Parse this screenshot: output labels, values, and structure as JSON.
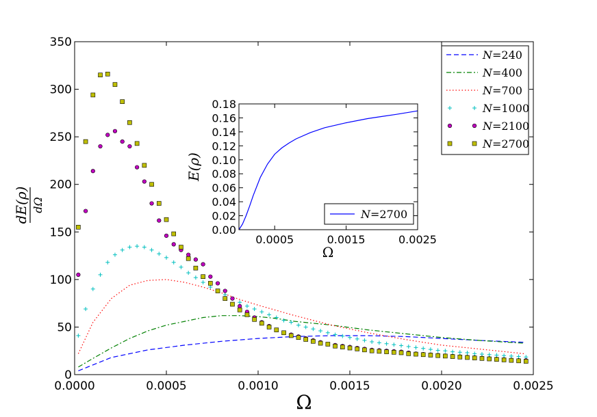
{
  "chart_data": [
    {
      "type": "line",
      "title": "",
      "xlabel": "Ω",
      "ylabel": "dE(ρ)/dΩ",
      "ylabel_numerator": "dE(ρ)",
      "ylabel_denominator": "dΩ",
      "xlim": [
        0.0,
        0.0025
      ],
      "ylim": [
        0,
        350
      ],
      "xticks": [
        0.0,
        0.0005,
        0.001,
        0.0015,
        0.002,
        0.0025
      ],
      "xtick_labels": [
        "0.0000",
        "0.0005",
        "0.0010",
        "0.0015",
        "0.0020",
        "0.0025"
      ],
      "yticks": [
        0,
        50,
        100,
        150,
        200,
        250,
        300,
        350
      ],
      "ytick_labels": [
        "0",
        "50",
        "100",
        "150",
        "200",
        "250",
        "300",
        "350"
      ],
      "legend_position": "top-right",
      "series": [
        {
          "name": "N=240",
          "label_var": "N",
          "label_val": "240",
          "style": "dashed",
          "color": "#0000ff",
          "x": [
            2e-05,
            0.0002,
            0.0004,
            0.0006,
            0.0008,
            0.001,
            0.0012,
            0.0014,
            0.0016,
            0.0018,
            0.002,
            0.0022,
            0.00245
          ],
          "y": [
            4,
            18,
            26,
            31,
            35,
            38,
            40,
            41,
            41,
            40,
            38,
            36,
            34
          ]
        },
        {
          "name": "N=400",
          "label_var": "N",
          "label_val": "400",
          "style": "dashdot",
          "color": "#008000",
          "x": [
            2e-05,
            0.0001,
            0.0002,
            0.0003,
            0.0004,
            0.0005,
            0.0006,
            0.0007,
            0.0008,
            0.0009,
            0.001,
            0.0011,
            0.0012,
            0.0014,
            0.0016,
            0.0018,
            0.002,
            0.0022,
            0.00245
          ],
          "y": [
            8,
            17,
            28,
            38,
            46,
            52,
            56,
            60,
            62,
            62,
            61,
            59,
            56,
            52,
            47,
            43,
            39,
            36,
            33
          ]
        },
        {
          "name": "N=700",
          "label_var": "N",
          "label_val": "700",
          "style": "dotted",
          "color": "#ff0000",
          "x": [
            2e-05,
            0.0001,
            0.0002,
            0.0003,
            0.0004,
            0.0005,
            0.0006,
            0.0007,
            0.0008,
            0.0009,
            0.001,
            0.0012,
            0.0014,
            0.0016,
            0.0018,
            0.002,
            0.0022,
            0.00245
          ],
          "y": [
            22,
            55,
            80,
            94,
            99,
            100,
            97,
            92,
            86,
            79,
            73,
            62,
            52,
            44,
            37,
            31,
            27,
            22
          ]
        },
        {
          "name": "N=1000",
          "label_var": "N",
          "label_val": "1000",
          "style": "plus",
          "color": "#00bfbf",
          "x": [
            2e-05,
            6e-05,
            0.0001,
            0.00014,
            0.00018,
            0.00022,
            0.00026,
            0.0003,
            0.00034,
            0.00038,
            0.00042,
            0.00046,
            0.0005,
            0.00054,
            0.00058,
            0.00062,
            0.00066,
            0.0007,
            0.00074,
            0.00078,
            0.00082,
            0.00086,
            0.0009,
            0.00094,
            0.00098,
            0.00102,
            0.00106,
            0.0011,
            0.00114,
            0.00118,
            0.00122,
            0.00126,
            0.0013,
            0.00134,
            0.00138,
            0.00142,
            0.00146,
            0.0015,
            0.00154,
            0.00158,
            0.00162,
            0.00166,
            0.0017,
            0.00174,
            0.00178,
            0.00182,
            0.00186,
            0.0019,
            0.00194,
            0.00198,
            0.00202,
            0.00206,
            0.0021,
            0.00214,
            0.00218,
            0.00222,
            0.00226,
            0.0023,
            0.00234,
            0.00238,
            0.00242,
            0.00246
          ],
          "y": [
            41,
            69,
            90,
            105,
            118,
            126,
            131,
            134,
            135,
            134,
            131,
            127,
            123,
            118,
            113,
            107,
            102,
            97,
            92,
            88,
            84,
            80,
            76,
            72,
            69,
            66,
            63,
            60,
            57,
            55,
            52,
            50,
            48,
            46,
            44,
            42,
            40.5,
            39,
            37.5,
            36,
            34.5,
            33.5,
            32.5,
            31.5,
            30.5,
            29.5,
            28.5,
            27.5,
            26.5,
            25.5,
            25,
            24,
            23.5,
            23,
            22,
            21.5,
            21,
            20.5,
            20,
            19.5,
            19,
            18.5
          ]
        },
        {
          "name": "N=2100",
          "label_var": "N",
          "label_val": "2100",
          "style": "circle",
          "color": "#bf00bf",
          "x": [
            2e-05,
            6e-05,
            0.0001,
            0.00014,
            0.00018,
            0.00022,
            0.00026,
            0.0003,
            0.00034,
            0.00038,
            0.00042,
            0.00046,
            0.0005,
            0.00054,
            0.00058,
            0.00062,
            0.00066,
            0.0007,
            0.00074,
            0.00078,
            0.00082,
            0.00086,
            0.0009,
            0.00094,
            0.00098,
            0.00102,
            0.00106,
            0.0011,
            0.00114,
            0.00118,
            0.00122,
            0.00126,
            0.0013,
            0.00134,
            0.00138,
            0.00142,
            0.00146,
            0.0015,
            0.00154,
            0.00158,
            0.00162,
            0.00166,
            0.0017,
            0.00174,
            0.00178,
            0.00182,
            0.00186,
            0.0019,
            0.00194,
            0.00198,
            0.00202,
            0.00206,
            0.0021,
            0.00214,
            0.00218,
            0.00222,
            0.00226,
            0.0023,
            0.00234,
            0.00238,
            0.00242,
            0.00246
          ],
          "y": [
            105,
            172,
            214,
            240,
            252,
            256,
            245,
            240,
            218,
            203,
            180,
            162,
            146,
            137,
            131,
            126,
            121,
            116,
            103,
            96,
            88,
            80,
            72,
            66,
            60,
            55,
            51,
            47,
            44,
            42,
            40,
            38,
            36,
            34,
            32,
            31,
            30,
            29,
            28,
            27,
            26,
            25.5,
            25,
            24.5,
            24,
            23,
            22,
            21.5,
            21,
            20.5,
            20,
            19.5,
            19,
            18.5,
            18,
            17.5,
            17,
            16.5,
            16,
            15.5,
            15,
            15
          ]
        },
        {
          "name": "N=2700",
          "label_var": "N",
          "label_val": "2700",
          "style": "square",
          "color": "#bfbf00",
          "x": [
            2e-05,
            6e-05,
            0.0001,
            0.00014,
            0.00018,
            0.00022,
            0.00026,
            0.0003,
            0.00034,
            0.00038,
            0.00042,
            0.00046,
            0.0005,
            0.00054,
            0.00058,
            0.00062,
            0.00066,
            0.0007,
            0.00074,
            0.00078,
            0.00082,
            0.00086,
            0.0009,
            0.00094,
            0.00098,
            0.00102,
            0.00106,
            0.0011,
            0.00114,
            0.00118,
            0.00122,
            0.00126,
            0.0013,
            0.00134,
            0.00138,
            0.00142,
            0.00146,
            0.0015,
            0.00154,
            0.00158,
            0.00162,
            0.00166,
            0.0017,
            0.00174,
            0.00178,
            0.00182,
            0.00186,
            0.0019,
            0.00194,
            0.00198,
            0.00202,
            0.00206,
            0.0021,
            0.00214,
            0.00218,
            0.00222,
            0.00226,
            0.0023,
            0.00234,
            0.00238,
            0.00242,
            0.00246
          ],
          "y": [
            155,
            245,
            294,
            315,
            316,
            305,
            287,
            265,
            243,
            220,
            200,
            180,
            163,
            148,
            134,
            122,
            112,
            103,
            96,
            88,
            80,
            74,
            68,
            63,
            58,
            54,
            50,
            47,
            44,
            41,
            39,
            37,
            35,
            33,
            32,
            30,
            29,
            28,
            27,
            26,
            25,
            24.5,
            24,
            23.5,
            23,
            22,
            21.5,
            21,
            20.5,
            20,
            19.5,
            19,
            18.5,
            18,
            17.5,
            17,
            16.5,
            16,
            15.5,
            15,
            14.5,
            14
          ]
        }
      ]
    },
    {
      "type": "line",
      "title": "",
      "xlabel": "Ω",
      "ylabel": "E(ρ)",
      "xlim": [
        0.0,
        0.0025
      ],
      "ylim": [
        0.0,
        0.18
      ],
      "xticks": [
        0.0005,
        0.0015,
        0.0025
      ],
      "xtick_labels": [
        "0.0005",
        "0.0015",
        "0.0025"
      ],
      "yticks": [
        0.0,
        0.02,
        0.04,
        0.06,
        0.08,
        0.1,
        0.12,
        0.14,
        0.16,
        0.18
      ],
      "ytick_labels": [
        "0.00",
        "0.02",
        "0.04",
        "0.06",
        "0.08",
        "0.10",
        "0.12",
        "0.14",
        "0.16",
        "0.18"
      ],
      "legend_position": "bottom-right",
      "series": [
        {
          "name": "N=2700",
          "label_var": "N",
          "label_val": "2700",
          "style": "solid",
          "color": "#0000ff",
          "x": [
            0.0,
            5e-05,
            0.0001,
            0.00015,
            0.0002,
            0.0003,
            0.0004,
            0.0005,
            0.0006,
            0.0007,
            0.0008,
            0.001,
            0.0012,
            0.0015,
            0.0018,
            0.002,
            0.0022,
            0.0025
          ],
          "y": [
            0.0,
            0.008,
            0.02,
            0.034,
            0.049,
            0.075,
            0.094,
            0.108,
            0.117,
            0.124,
            0.13,
            0.139,
            0.146,
            0.153,
            0.159,
            0.162,
            0.165,
            0.17
          ]
        }
      ]
    }
  ]
}
